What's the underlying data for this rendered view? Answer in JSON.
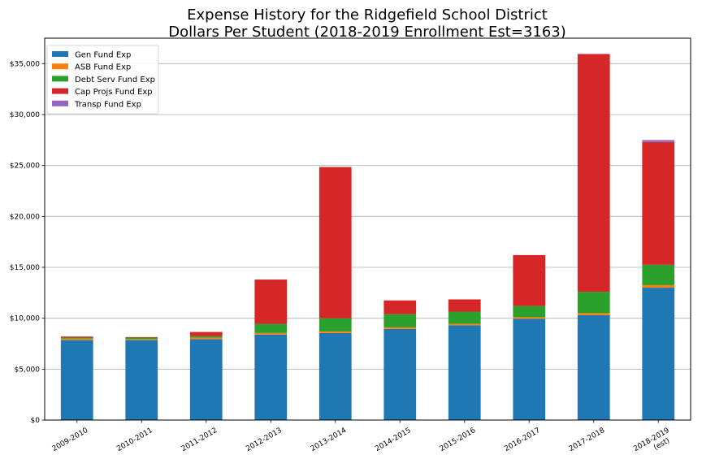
{
  "chart_data": {
    "type": "bar",
    "stacked": true,
    "title": "Expense History for the Ridgefield School District",
    "subtitle": "Dollars Per Student (2018-2019 Enrollment Est=3163)",
    "xlabel": "",
    "ylabel": "",
    "ylim": [
      0,
      37500
    ],
    "y_ticks": [
      0,
      5000,
      10000,
      15000,
      20000,
      25000,
      30000,
      35000
    ],
    "y_tick_labels": [
      "$0",
      "$5,000",
      "$10,000",
      "$15,000",
      "$20,000",
      "$25,000",
      "$30,000",
      "$35,000"
    ],
    "grid": "horizontal",
    "legend_position": "top-left",
    "categories": [
      "2009-2010",
      "2010-2011",
      "2011-2012",
      "2012-2013",
      "2013-2014",
      "2014-2015",
      "2015-2016",
      "2016-2017",
      "2017-2018",
      "2018-2019\n(est)"
    ],
    "series": [
      {
        "name": "Gen Fund Exp",
        "color": "#1f77b4",
        "values": [
          7850,
          7850,
          7950,
          8400,
          8550,
          8950,
          9300,
          9950,
          10300,
          13000
        ]
      },
      {
        "name": "ASB Fund Exp",
        "color": "#ff7f0e",
        "values": [
          150,
          100,
          150,
          150,
          150,
          150,
          150,
          150,
          200,
          250
        ]
      },
      {
        "name": "Debt Serv Fund Exp",
        "color": "#2ca02c",
        "values": [
          100,
          150,
          150,
          900,
          1300,
          1300,
          1200,
          1100,
          2100,
          2000
        ]
      },
      {
        "name": "Cap Projs Fund Exp",
        "color": "#d62728",
        "values": [
          100,
          50,
          400,
          4350,
          14850,
          1350,
          1200,
          5000,
          23350,
          12050
        ]
      },
      {
        "name": "Transp Fund Exp",
        "color": "#9467bd",
        "values": [
          0,
          0,
          0,
          0,
          0,
          0,
          0,
          0,
          0,
          200
        ]
      }
    ]
  }
}
